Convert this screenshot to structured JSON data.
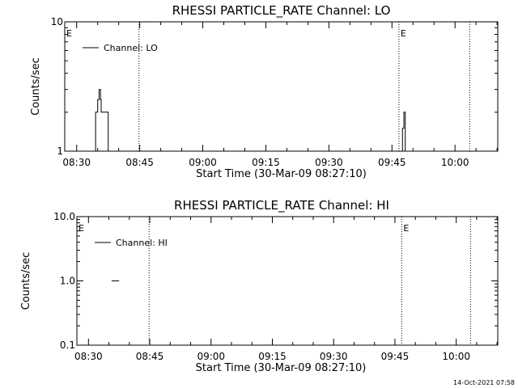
{
  "chart_data": [
    {
      "type": "line",
      "title": "RHESSI PARTICLE_RATE Channel: LO",
      "xlabel": "Start Time (30-Mar-09 08:27:10)",
      "ylabel": "Counts/sec",
      "yscale": "log",
      "ylim": [
        1,
        10
      ],
      "y_ticks": [
        "1",
        "10"
      ],
      "xlim": [
        "08:27:10",
        "10:10:10"
      ],
      "x_ticks": [
        "08:30",
        "08:45",
        "09:00",
        "09:15",
        "09:30",
        "09:45",
        "10:00"
      ],
      "legend": {
        "position": "top-left",
        "label": "Channel: LO"
      },
      "vertical_markers": [
        "08:44:50",
        "09:46:40",
        "10:03:30"
      ],
      "flags": [
        {
          "label": "E",
          "time": "08:27:10"
        },
        {
          "label": "E",
          "time": "09:46:40"
        }
      ],
      "series": [
        {
          "name": "Channel: LO",
          "segments": [
            [
              [
                "08:34:30",
                1
              ],
              [
                "08:34:30",
                2
              ],
              [
                "08:35:00",
                2
              ],
              [
                "08:35:00",
                2.5
              ],
              [
                "08:35:20",
                2.5
              ],
              [
                "08:35:20",
                3
              ],
              [
                "08:35:40",
                3
              ],
              [
                "08:35:40",
                2.5
              ],
              [
                "08:35:50",
                2.5
              ],
              [
                "08:35:50",
                2
              ],
              [
                "08:37:30",
                2
              ],
              [
                "08:37:30",
                1
              ]
            ],
            [
              [
                "09:47:30",
                1
              ],
              [
                "09:47:30",
                1.5
              ],
              [
                "09:47:50",
                1.5
              ],
              [
                "09:47:50",
                2
              ],
              [
                "09:48:10",
                2
              ],
              [
                "09:48:10",
                1
              ]
            ]
          ]
        }
      ]
    },
    {
      "type": "line",
      "title": "RHESSI PARTICLE_RATE Channel: HI",
      "xlabel": "Start Time (30-Mar-09 08:27:10)",
      "ylabel": "Counts/sec",
      "yscale": "log",
      "ylim": [
        0.1,
        10
      ],
      "y_ticks": [
        "0.1",
        "1.0",
        "10.0"
      ],
      "xlim": [
        "08:27:10",
        "10:10:10"
      ],
      "x_ticks": [
        "08:30",
        "08:45",
        "09:00",
        "09:15",
        "09:30",
        "09:45",
        "10:00"
      ],
      "legend": {
        "position": "top-left",
        "label": "Channel: HI"
      },
      "vertical_markers": [
        "08:44:50",
        "09:46:40",
        "10:03:30"
      ],
      "flags": [
        {
          "label": "E",
          "time": "08:27:10"
        },
        {
          "label": "E",
          "time": "09:46:40"
        }
      ],
      "series": [
        {
          "name": "Channel: HI",
          "segments": [
            [
              [
                "08:35:40",
                1
              ],
              [
                "08:37:30",
                1
              ]
            ]
          ]
        }
      ]
    }
  ],
  "footer": {
    "timestamp": "14-Oct-2021 07:58"
  }
}
